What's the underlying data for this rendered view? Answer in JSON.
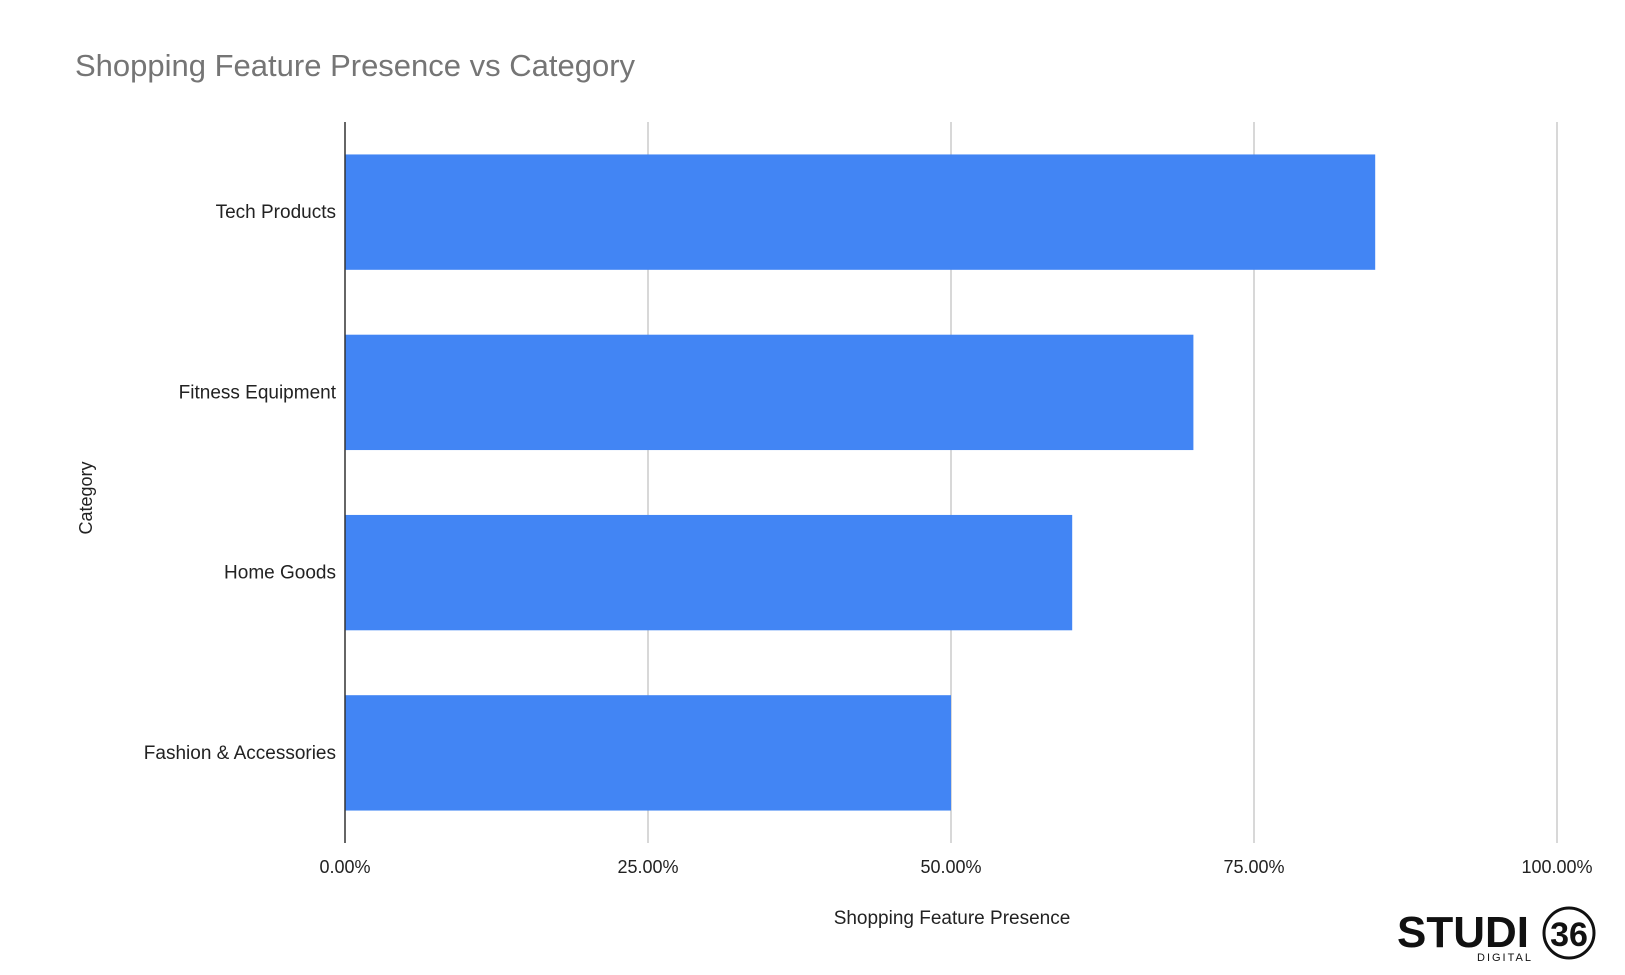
{
  "chart_data": {
    "type": "bar",
    "orientation": "horizontal",
    "title": "Shopping Feature Presence vs Category",
    "xlabel": "Shopping Feature Presence",
    "ylabel": "Category",
    "categories": [
      "Tech Products",
      "Fitness Equipment",
      "Home Goods",
      "Fashion & Accessories"
    ],
    "values": [
      0.85,
      0.7,
      0.6,
      0.5
    ],
    "xlim": [
      0,
      1
    ],
    "x_ticks": [
      0,
      0.25,
      0.5,
      0.75,
      1.0
    ],
    "x_tick_labels": [
      "0.00%",
      "25.00%",
      "50.00%",
      "75.00%",
      "100.00%"
    ],
    "grid": true,
    "bar_color": "#4285f4",
    "gridline_color": "#cccccc"
  },
  "brand": {
    "logo_text": "STUDI",
    "logo_number": "36",
    "logo_sub": "DIGITAL"
  }
}
